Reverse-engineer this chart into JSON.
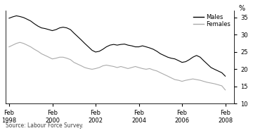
{
  "title": "",
  "ylabel": "%",
  "ylim": [
    10,
    37
  ],
  "yticks": [
    10,
    15,
    20,
    25,
    30,
    35
  ],
  "xlim_start": 1997.92,
  "xlim_end": 2008.5,
  "xtick_years": [
    1998,
    2000,
    2002,
    2004,
    2006,
    2008
  ],
  "source_text": "Source: Labour Force Survey.",
  "legend_entries": [
    "Males",
    "Females"
  ],
  "males_color": "#000000",
  "females_color": "#aaaaaa",
  "background_color": "#ffffff",
  "males_data": [
    [
      1998.08,
      34.8
    ],
    [
      1998.25,
      35.2
    ],
    [
      1998.42,
      35.5
    ],
    [
      1998.58,
      35.3
    ],
    [
      1998.75,
      35.0
    ],
    [
      1998.92,
      34.5
    ],
    [
      1999.08,
      34.0
    ],
    [
      1999.25,
      33.2
    ],
    [
      1999.42,
      32.5
    ],
    [
      1999.58,
      32.0
    ],
    [
      1999.75,
      31.8
    ],
    [
      1999.92,
      31.5
    ],
    [
      2000.08,
      31.2
    ],
    [
      2000.25,
      31.5
    ],
    [
      2000.42,
      32.0
    ],
    [
      2000.58,
      32.2
    ],
    [
      2000.75,
      32.0
    ],
    [
      2000.92,
      31.5
    ],
    [
      2001.08,
      30.5
    ],
    [
      2001.25,
      29.5
    ],
    [
      2001.42,
      28.5
    ],
    [
      2001.58,
      27.5
    ],
    [
      2001.75,
      26.5
    ],
    [
      2001.92,
      25.5
    ],
    [
      2002.08,
      25.0
    ],
    [
      2002.25,
      25.2
    ],
    [
      2002.42,
      25.8
    ],
    [
      2002.58,
      26.5
    ],
    [
      2002.75,
      27.0
    ],
    [
      2002.92,
      27.2
    ],
    [
      2003.08,
      27.0
    ],
    [
      2003.25,
      27.2
    ],
    [
      2003.42,
      27.3
    ],
    [
      2003.58,
      27.0
    ],
    [
      2003.75,
      26.8
    ],
    [
      2003.92,
      26.5
    ],
    [
      2004.08,
      26.5
    ],
    [
      2004.25,
      26.8
    ],
    [
      2004.42,
      26.5
    ],
    [
      2004.58,
      26.2
    ],
    [
      2004.75,
      25.8
    ],
    [
      2004.92,
      25.2
    ],
    [
      2005.08,
      24.5
    ],
    [
      2005.25,
      24.0
    ],
    [
      2005.42,
      23.5
    ],
    [
      2005.58,
      23.2
    ],
    [
      2005.75,
      23.0
    ],
    [
      2005.92,
      22.5
    ],
    [
      2006.08,
      22.0
    ],
    [
      2006.25,
      22.2
    ],
    [
      2006.42,
      22.8
    ],
    [
      2006.58,
      23.5
    ],
    [
      2006.75,
      24.0
    ],
    [
      2006.92,
      23.5
    ],
    [
      2007.08,
      22.5
    ],
    [
      2007.25,
      21.5
    ],
    [
      2007.42,
      20.5
    ],
    [
      2007.58,
      20.0
    ],
    [
      2007.75,
      19.5
    ],
    [
      2007.92,
      19.0
    ],
    [
      2008.08,
      18.0
    ]
  ],
  "females_data": [
    [
      1998.08,
      26.5
    ],
    [
      1998.25,
      27.0
    ],
    [
      1998.42,
      27.5
    ],
    [
      1998.58,
      27.8
    ],
    [
      1998.75,
      27.5
    ],
    [
      1998.92,
      27.0
    ],
    [
      1999.08,
      26.5
    ],
    [
      1999.25,
      25.8
    ],
    [
      1999.42,
      25.2
    ],
    [
      1999.58,
      24.5
    ],
    [
      1999.75,
      24.0
    ],
    [
      1999.92,
      23.5
    ],
    [
      2000.08,
      23.0
    ],
    [
      2000.25,
      23.2
    ],
    [
      2000.42,
      23.5
    ],
    [
      2000.58,
      23.5
    ],
    [
      2000.75,
      23.2
    ],
    [
      2000.92,
      22.8
    ],
    [
      2001.08,
      22.0
    ],
    [
      2001.25,
      21.5
    ],
    [
      2001.42,
      21.0
    ],
    [
      2001.58,
      20.5
    ],
    [
      2001.75,
      20.2
    ],
    [
      2001.92,
      20.0
    ],
    [
      2002.08,
      20.2
    ],
    [
      2002.25,
      20.5
    ],
    [
      2002.42,
      21.0
    ],
    [
      2002.58,
      21.2
    ],
    [
      2002.75,
      21.0
    ],
    [
      2002.92,
      20.8
    ],
    [
      2003.08,
      20.5
    ],
    [
      2003.25,
      20.8
    ],
    [
      2003.42,
      20.5
    ],
    [
      2003.58,
      20.2
    ],
    [
      2003.75,
      20.5
    ],
    [
      2003.92,
      20.8
    ],
    [
      2004.08,
      20.5
    ],
    [
      2004.25,
      20.2
    ],
    [
      2004.42,
      20.0
    ],
    [
      2004.58,
      20.2
    ],
    [
      2004.75,
      19.8
    ],
    [
      2004.92,
      19.5
    ],
    [
      2005.08,
      19.0
    ],
    [
      2005.25,
      18.5
    ],
    [
      2005.42,
      18.0
    ],
    [
      2005.58,
      17.5
    ],
    [
      2005.75,
      17.0
    ],
    [
      2005.92,
      16.8
    ],
    [
      2006.08,
      16.5
    ],
    [
      2006.25,
      16.8
    ],
    [
      2006.42,
      17.0
    ],
    [
      2006.58,
      17.2
    ],
    [
      2006.75,
      17.0
    ],
    [
      2006.92,
      16.8
    ],
    [
      2007.08,
      16.5
    ],
    [
      2007.25,
      16.2
    ],
    [
      2007.42,
      16.0
    ],
    [
      2007.58,
      15.8
    ],
    [
      2007.75,
      15.5
    ],
    [
      2007.92,
      15.2
    ],
    [
      2008.08,
      14.0
    ]
  ]
}
